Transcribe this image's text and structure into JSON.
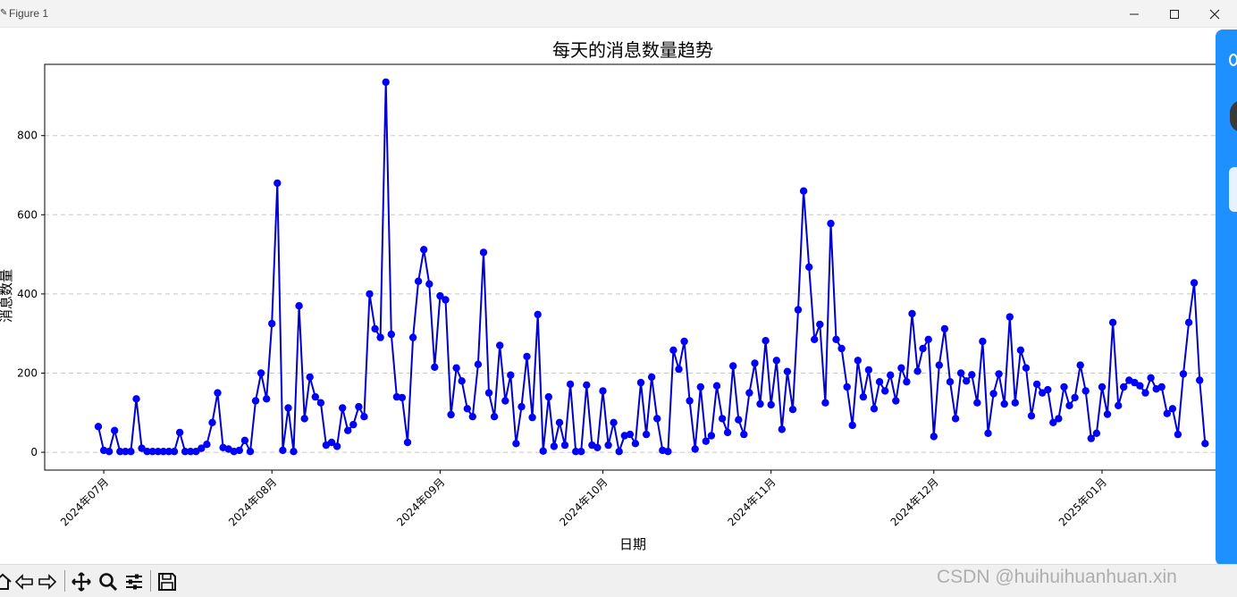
{
  "window": {
    "title": "Figure 1",
    "minimize_icon": "minimize-icon",
    "maximize_icon": "maximize-icon",
    "close_icon": "close-icon"
  },
  "toolbar": {
    "icons": [
      "home-icon",
      "back-arrow-icon",
      "forward-arrow-icon",
      "pan-icon",
      "zoom-icon",
      "configure-subplots-icon",
      "save-icon"
    ]
  },
  "watermark": "CSDN @huihuihuanhuan.xin",
  "chart_data": {
    "type": "line",
    "title": "每天的消息数量趋势",
    "xlabel": "日期",
    "ylabel": "消息数量",
    "x_ticks": [
      "2024年07月",
      "2024年08月",
      "2024年09月",
      "2024年10月",
      "2024年11月",
      "2024年12月",
      "2025年01月"
    ],
    "y_ticks": [
      "0",
      "200",
      "400",
      "600",
      "800"
    ],
    "ylim": [
      -45,
      980
    ],
    "grid": "horizontal dashed",
    "line_color": "#0000cc",
    "marker_color": "#0000ff",
    "x_start": "2024-06-30",
    "values": [
      65,
      5,
      2,
      55,
      2,
      2,
      2,
      135,
      10,
      2,
      2,
      2,
      2,
      2,
      2,
      50,
      2,
      2,
      2,
      10,
      20,
      75,
      150,
      12,
      8,
      2,
      5,
      30,
      2,
      130,
      200,
      135,
      325,
      680,
      5,
      112,
      2,
      370,
      85,
      190,
      140,
      125,
      18,
      25,
      15,
      112,
      55,
      70,
      115,
      90,
      400,
      312,
      290,
      935,
      298,
      140,
      138,
      25,
      290,
      432,
      512,
      425,
      215,
      395,
      385,
      95,
      213,
      180,
      110,
      90,
      222,
      505,
      150,
      90,
      270,
      130,
      195,
      22,
      115,
      242,
      88,
      348,
      3,
      140,
      15,
      75,
      18,
      172,
      2,
      2,
      170,
      18,
      12,
      155,
      18,
      75,
      2,
      42,
      45,
      22,
      176,
      45,
      190,
      85,
      5,
      2,
      258,
      210,
      280,
      130,
      8,
      165,
      28,
      42,
      168,
      85,
      50,
      218,
      82,
      45,
      150,
      225,
      122,
      282,
      120,
      232,
      58,
      204,
      108,
      360,
      660,
      468,
      285,
      323,
      125,
      578,
      285,
      262,
      165,
      68,
      232,
      140,
      208,
      110,
      178,
      155,
      195,
      130,
      213,
      178,
      350,
      205,
      262,
      285,
      40,
      220,
      312,
      178,
      85,
      200,
      180,
      196,
      125,
      280,
      48,
      148,
      198,
      122,
      342,
      125,
      258,
      213,
      92,
      172,
      150,
      158,
      75,
      85,
      165,
      118,
      138,
      220,
      155,
      35,
      48,
      165,
      96,
      328,
      118,
      165,
      182,
      176,
      168,
      150,
      188,
      160,
      165,
      98,
      110,
      45,
      198,
      328,
      428,
      182,
      22
    ]
  }
}
